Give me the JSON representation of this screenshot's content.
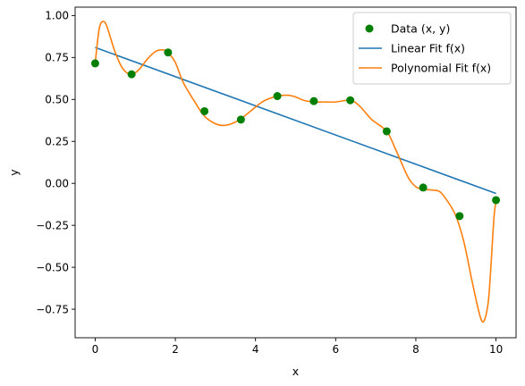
{
  "chart_data": {
    "type": "scatter",
    "xlabel": "x",
    "ylabel": "y",
    "xlim": [
      -0.5,
      10.5
    ],
    "ylim": [
      -0.92,
      1.05
    ],
    "xticks": [
      0,
      2,
      4,
      6,
      8,
      10
    ],
    "xtick_labels": [
      "0",
      "2",
      "4",
      "6",
      "8",
      "10"
    ],
    "yticks": [
      -0.75,
      -0.5,
      -0.25,
      0.0,
      0.25,
      0.5,
      0.75,
      1.0
    ],
    "ytick_labels": [
      "−0.75",
      "−0.50",
      "−0.25",
      "0.00",
      "0.25",
      "0.50",
      "0.75",
      "1.00"
    ],
    "grid": false,
    "legend_position": "top-right",
    "series": [
      {
        "name": "Data (x, y)",
        "kind": "scatter",
        "color": "#008000",
        "x": [
          0.0,
          0.909,
          1.818,
          2.727,
          3.636,
          4.545,
          5.455,
          6.364,
          7.273,
          8.182,
          9.091,
          10.0
        ],
        "y": [
          0.715,
          0.65,
          0.78,
          0.43,
          0.38,
          0.52,
          0.49,
          0.495,
          0.31,
          -0.025,
          -0.195,
          -0.1
        ]
      },
      {
        "name": "Linear Fit f(x)",
        "kind": "line",
        "color": "#1f77b4",
        "x": [
          0.0,
          10.0
        ],
        "y": [
          0.81,
          -0.06
        ]
      },
      {
        "name": "Polynomial Fit f(x)",
        "kind": "line",
        "color": "#ff7f0e",
        "x": [
          0.0,
          0.1,
          0.2,
          0.3,
          0.5,
          0.7,
          0.909,
          1.1,
          1.3,
          1.5,
          1.7,
          1.818,
          2.0,
          2.2,
          2.5,
          2.727,
          3.0,
          3.2,
          3.4,
          3.636,
          3.9,
          4.2,
          4.545,
          4.8,
          5.0,
          5.2,
          5.455,
          5.7,
          6.0,
          6.364,
          6.6,
          6.9,
          7.273,
          7.5,
          7.8,
          8.0,
          8.182,
          8.4,
          8.6,
          8.8,
          9.0,
          9.2,
          9.4,
          9.6,
          9.7,
          9.8,
          9.85,
          9.9,
          9.95,
          10.0
        ],
        "y": [
          0.715,
          0.92,
          0.965,
          0.93,
          0.78,
          0.68,
          0.65,
          0.68,
          0.74,
          0.785,
          0.795,
          0.78,
          0.72,
          0.6,
          0.48,
          0.4,
          0.355,
          0.345,
          0.355,
          0.385,
          0.435,
          0.49,
          0.52,
          0.525,
          0.515,
          0.495,
          0.485,
          0.485,
          0.485,
          0.495,
          0.46,
          0.38,
          0.31,
          0.2,
          0.04,
          -0.02,
          -0.035,
          -0.04,
          -0.05,
          -0.11,
          -0.195,
          -0.35,
          -0.58,
          -0.79,
          -0.82,
          -0.72,
          -0.58,
          -0.39,
          -0.2,
          -0.1
        ]
      }
    ]
  },
  "legend": {
    "items": [
      {
        "label": "Data (x, y)",
        "color": "#008000",
        "kind": "marker"
      },
      {
        "label": "Linear Fit f(x)",
        "color": "#1f77b4",
        "kind": "line"
      },
      {
        "label": "Polynomial Fit f(x)",
        "color": "#ff7f0e",
        "kind": "line"
      }
    ]
  }
}
